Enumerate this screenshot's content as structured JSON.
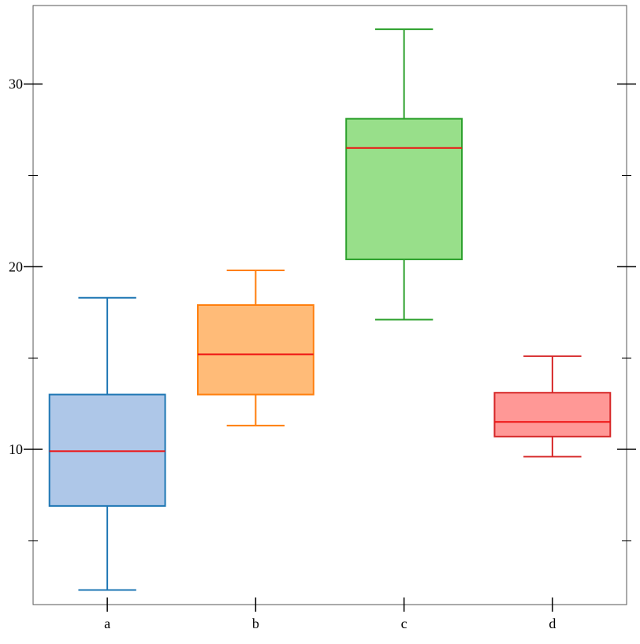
{
  "chart_data": {
    "type": "box",
    "title": "",
    "xlabel": "",
    "ylabel": "",
    "ylim": [
      1.5,
      34.3
    ],
    "y_ticks_major": [
      10,
      20,
      30
    ],
    "y_tick_labels": [
      "10",
      "20",
      "30"
    ],
    "y_ticks_minor": [
      5,
      15,
      25
    ],
    "grid": false,
    "legend": "none",
    "categories": [
      "a",
      "b",
      "c",
      "d"
    ],
    "series": [
      {
        "category": "a",
        "whisker_low": 2.3,
        "q1": 6.9,
        "median": 9.9,
        "q3": 13.0,
        "whisker_high": 18.3,
        "fill_color": "#aec7e8",
        "edge_color": "#1f77b4"
      },
      {
        "category": "b",
        "whisker_low": 11.3,
        "q1": 13.0,
        "median": 15.2,
        "q3": 17.9,
        "whisker_high": 19.8,
        "fill_color": "#ffbb78",
        "edge_color": "#ff7f0e"
      },
      {
        "category": "c",
        "whisker_low": 17.1,
        "q1": 20.4,
        "median": 26.5,
        "q3": 28.1,
        "whisker_high": 33.0,
        "fill_color": "#98df8a",
        "edge_color": "#2ca02c"
      },
      {
        "category": "d",
        "whisker_low": 9.6,
        "q1": 10.7,
        "median": 11.5,
        "q3": 13.1,
        "whisker_high": 15.1,
        "fill_color": "#ff9896",
        "edge_color": "#d62728"
      }
    ],
    "median_color": "#ee1111"
  }
}
